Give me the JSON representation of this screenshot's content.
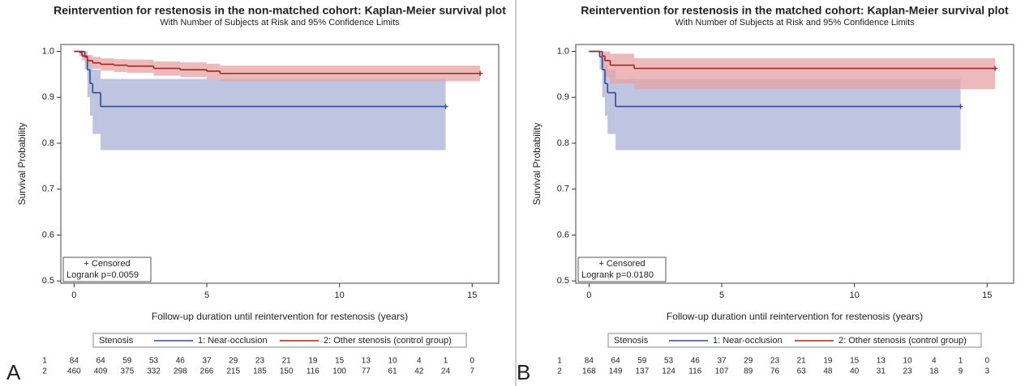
{
  "chart_data": [
    {
      "type": "line",
      "panel_label": "A",
      "title": "Reintervention for restenosis in the non-matched cohort: Kaplan-Meier survival plot",
      "subtitle": "With Number of Subjects at Risk and 95% Confidence Limits",
      "xlabel": "Follow-up duration until reintervention for restenosis (years)",
      "ylabel": "Survival Probability",
      "xlim": [
        -0.5,
        16
      ],
      "ylim": [
        0.495,
        1.015
      ],
      "xticks": [
        0,
        5,
        10,
        15
      ],
      "yticks": [
        {
          "value": 0.5,
          "label": "0.5"
        },
        0.6,
        0.7,
        0.8,
        0.9,
        {
          "value": 1.0,
          "label": "1.0"
        }
      ],
      "legend_title": "Stenosis",
      "annotations": [
        "+ Censored",
        "Logrank p=0.0059"
      ],
      "series": [
        {
          "name": "1: Near-occlusion",
          "color": "#2e4a9b",
          "band_color": "#a9b2d6",
          "x": [
            0,
            0.4,
            0.5,
            0.6,
            0.7,
            1.0,
            14
          ],
          "values": [
            1.0,
            0.988,
            0.96,
            0.93,
            0.91,
            0.88,
            0.88
          ],
          "lower": [
            1.0,
            0.96,
            0.9,
            0.86,
            0.82,
            0.785,
            0.785
          ],
          "upper": [
            1.0,
            1.0,
            0.99,
            0.97,
            0.96,
            0.94,
            0.94
          ]
        },
        {
          "name": "2: Other stenosis (control group)",
          "color": "#a3241c",
          "band_color": "#e6a3a3",
          "x": [
            0,
            0.2,
            0.3,
            0.5,
            0.7,
            1,
            1.5,
            2,
            3,
            4,
            5,
            5.5,
            15.3
          ],
          "values": [
            1.0,
            0.998,
            0.99,
            0.98,
            0.975,
            0.972,
            0.97,
            0.968,
            0.963,
            0.96,
            0.957,
            0.952,
            0.952
          ],
          "lower": [
            1.0,
            0.99,
            0.98,
            0.968,
            0.962,
            0.958,
            0.955,
            0.953,
            0.947,
            0.944,
            0.94,
            0.935,
            0.935
          ],
          "upper": [
            1.0,
            1.0,
            1.0,
            0.992,
            0.988,
            0.985,
            0.983,
            0.982,
            0.978,
            0.976,
            0.973,
            0.969,
            0.969
          ]
        }
      ],
      "at_risk_times": [
        0,
        1,
        2,
        3,
        4,
        5,
        6,
        7,
        8,
        9,
        10,
        11,
        12,
        13,
        14,
        15
      ],
      "at_risk": [
        {
          "label": "1",
          "counts": [
            84,
            64,
            59,
            53,
            46,
            37,
            29,
            23,
            21,
            19,
            15,
            13,
            10,
            4,
            1,
            0
          ]
        },
        {
          "label": "2",
          "counts": [
            460,
            409,
            375,
            332,
            298,
            266,
            215,
            185,
            150,
            116,
            100,
            77,
            61,
            42,
            24,
            7
          ]
        }
      ]
    },
    {
      "type": "line",
      "panel_label": "B",
      "title": "Reintervention for restenosis in the matched cohort: Kaplan-Meier survival plot",
      "subtitle": "With Number of Subjects at Risk and 95% Confidence Limits",
      "xlabel": "Follow-up duration until reintervention for restenosis (years)",
      "ylabel": "Survival Probability",
      "xlim": [
        -0.5,
        16
      ],
      "ylim": [
        0.495,
        1.015
      ],
      "xticks": [
        0,
        5,
        10,
        15
      ],
      "yticks": [
        {
          "value": 0.5,
          "label": "0.5"
        },
        0.6,
        0.7,
        0.8,
        0.9,
        {
          "value": 1.0,
          "label": "1.0"
        }
      ],
      "legend_title": "Stenosis",
      "annotations": [
        "+ Censored",
        "Logrank p=0.0180"
      ],
      "series": [
        {
          "name": "1: Near-occlusion",
          "color": "#2e4a9b",
          "band_color": "#a9b2d6",
          "x": [
            0,
            0.4,
            0.5,
            0.6,
            0.7,
            1.0,
            14
          ],
          "values": [
            1.0,
            0.988,
            0.96,
            0.93,
            0.91,
            0.88,
            0.88
          ],
          "lower": [
            1.0,
            0.96,
            0.9,
            0.86,
            0.82,
            0.785,
            0.785
          ],
          "upper": [
            1.0,
            1.0,
            0.99,
            0.97,
            0.96,
            0.94,
            0.94
          ]
        },
        {
          "name": "2: Other stenosis (control group)",
          "color": "#a3241c",
          "band_color": "#e6a3a3",
          "x": [
            0,
            0.5,
            0.6,
            0.8,
            1.7,
            15.3
          ],
          "values": [
            1.0,
            0.99,
            0.98,
            0.97,
            0.963,
            0.963
          ],
          "lower": [
            1.0,
            0.96,
            0.945,
            0.93,
            0.918,
            0.918
          ],
          "upper": [
            1.0,
            1.0,
            1.0,
            0.995,
            0.985,
            0.985
          ]
        }
      ],
      "at_risk_times": [
        0,
        1,
        2,
        3,
        4,
        5,
        6,
        7,
        8,
        9,
        10,
        11,
        12,
        13,
        14,
        15
      ],
      "at_risk": [
        {
          "label": "1",
          "counts": [
            84,
            64,
            59,
            53,
            46,
            37,
            29,
            23,
            21,
            19,
            15,
            13,
            10,
            4,
            1,
            0
          ]
        },
        {
          "label": "2",
          "counts": [
            168,
            149,
            137,
            124,
            116,
            107,
            89,
            76,
            63,
            48,
            40,
            31,
            23,
            18,
            9,
            3
          ]
        }
      ]
    }
  ]
}
